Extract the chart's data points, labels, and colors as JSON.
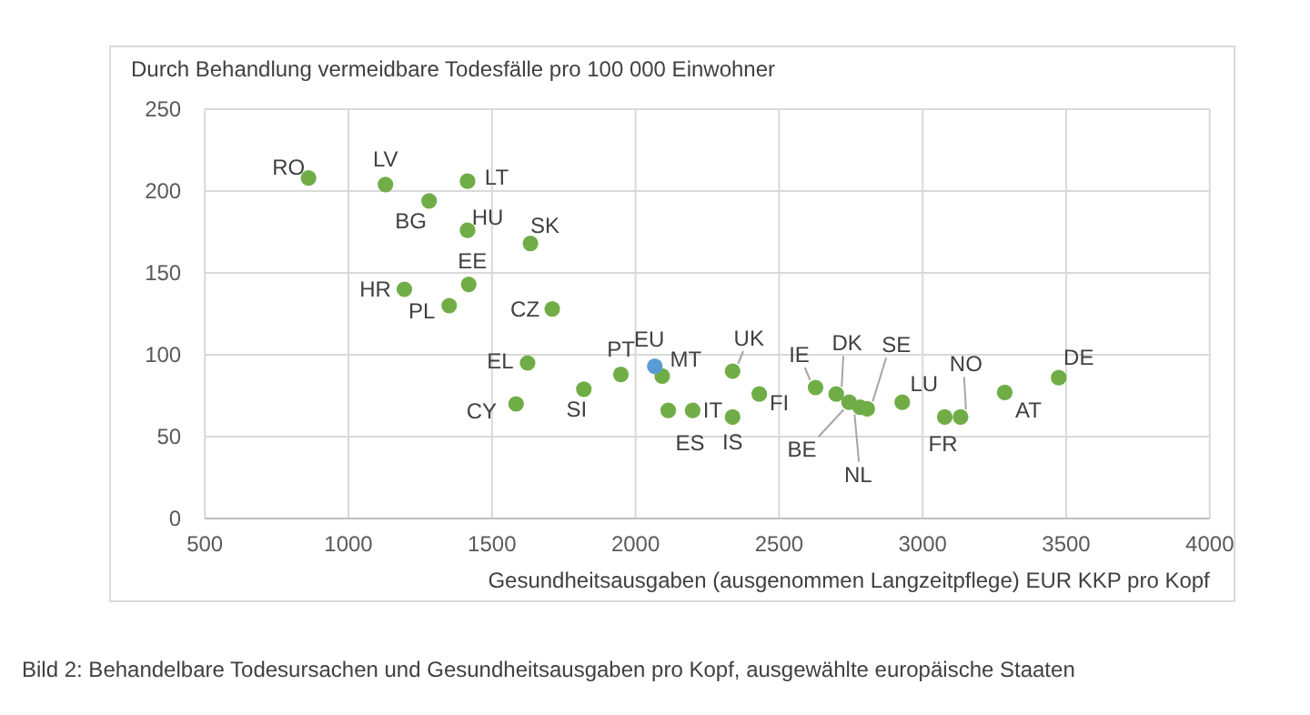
{
  "chart_data": {
    "type": "scatter",
    "ylabel": "Durch Behandlung vermeidbare Todesfälle pro 100 000 Einwohner",
    "xlabel": "Gesundheitsausgaben (ausgenommen Langzeitpflege) EUR KKP pro Kopf",
    "xlim": [
      500,
      4000
    ],
    "xticks": [
      500,
      1000,
      1500,
      2000,
      2500,
      3000,
      3500,
      4000
    ],
    "ylim": [
      0,
      250
    ],
    "yticks": [
      0,
      50,
      100,
      150,
      200,
      250
    ],
    "grid": true,
    "marker": "circle",
    "series": [
      {
        "color": "#70ad47",
        "x": [
          861,
          1129,
          1281,
          1415,
          1415,
          1634,
          1419,
          1195,
          1351,
          1710,
          1624,
          1584,
          1820,
          1949,
          2093,
          2114,
          2199,
          2338,
          2338,
          2431,
          2627,
          2699,
          2744,
          2782,
          2807,
          2929,
          3077,
          3132,
          3286,
          3474
        ],
        "values": [
          208,
          204,
          194,
          206,
          176,
          168,
          143,
          140,
          130,
          128,
          95,
          70,
          79,
          88,
          87,
          66,
          66,
          62,
          90,
          76,
          80,
          76,
          71,
          68,
          67,
          71,
          62,
          62,
          77,
          86
        ]
      },
      {
        "color": "#5b9bd5",
        "x": [
          2067
        ],
        "values": [
          93
        ]
      }
    ],
    "annotations": [
      {
        "text": "RO",
        "x": 861,
        "y": 208
      },
      {
        "text": "LV",
        "x": 1129,
        "y": 204
      },
      {
        "text": "BG",
        "x": 1281,
        "y": 194
      },
      {
        "text": "LT",
        "x": 1415,
        "y": 206
      },
      {
        "text": "HU",
        "x": 1415,
        "y": 176
      },
      {
        "text": "SK",
        "x": 1634,
        "y": 168
      },
      {
        "text": "EE",
        "x": 1419,
        "y": 143
      },
      {
        "text": "HR",
        "x": 1195,
        "y": 140
      },
      {
        "text": "PL",
        "x": 1351,
        "y": 130
      },
      {
        "text": "CZ",
        "x": 1710,
        "y": 128
      },
      {
        "text": "EL",
        "x": 1624,
        "y": 95
      },
      {
        "text": "CY",
        "x": 1584,
        "y": 70
      },
      {
        "text": "SI",
        "x": 1820,
        "y": 79
      },
      {
        "text": "PT",
        "x": 1949,
        "y": 88
      },
      {
        "text": "EU",
        "x": 2067,
        "y": 93
      },
      {
        "text": "MT",
        "x": 2093,
        "y": 87
      },
      {
        "text": "ES",
        "x": 2114,
        "y": 66
      },
      {
        "text": "IT",
        "x": 2199,
        "y": 66
      },
      {
        "text": "IS",
        "x": 2338,
        "y": 62
      },
      {
        "text": "UK",
        "x": 2338,
        "y": 90
      },
      {
        "text": "FI",
        "x": 2431,
        "y": 76
      },
      {
        "text": "IE",
        "x": 2627,
        "y": 80
      },
      {
        "text": "DK",
        "x": 2699,
        "y": 76
      },
      {
        "text": "BE",
        "x": 2744,
        "y": 71
      },
      {
        "text": "NL",
        "x": 2782,
        "y": 68
      },
      {
        "text": "SE",
        "x": 2807,
        "y": 67
      },
      {
        "text": "LU",
        "x": 2929,
        "y": 71
      },
      {
        "text": "FR",
        "x": 3077,
        "y": 62
      },
      {
        "text": "NO",
        "x": 3132,
        "y": 62
      },
      {
        "text": "AT",
        "x": 3286,
        "y": 77
      },
      {
        "text": "DE",
        "x": 3474,
        "y": 86
      },
      "Bild 2: Behandelbare Todesursachen und Gesundheitsausgaben pro Kopf, ausgewählte europäische Staaten"
    ]
  }
}
